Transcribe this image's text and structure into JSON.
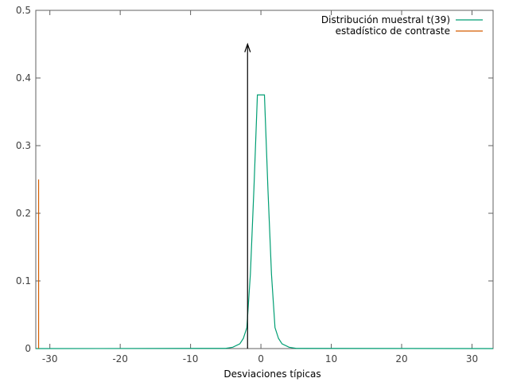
{
  "chart_data": {
    "type": "line",
    "title": "",
    "xlabel": "Desviaciones típicas",
    "ylabel": "",
    "xlim": [
      -32,
      33
    ],
    "ylim": [
      0,
      0.5
    ],
    "x_ticks": [
      -30,
      -20,
      -10,
      0,
      10,
      20,
      30
    ],
    "x_tick_labels": [
      "-30",
      "-20",
      "-10",
      "0",
      "10",
      "20",
      "30"
    ],
    "y_ticks": [
      0,
      0.1,
      0.2,
      0.3,
      0.4,
      0.5
    ],
    "y_tick_labels": [
      "0",
      "0.1",
      "0.2",
      "0.3",
      "0.4",
      "0.5"
    ],
    "grid": false,
    "legend_position": "top-right",
    "series": [
      {
        "name": "Distribución muestral t(39)",
        "color": "#009e73",
        "x": [
          -32,
          -5,
          -4,
          -3,
          -2.5,
          -2,
          -1.5,
          -1,
          -0.5,
          0,
          0.5,
          1,
          1.5,
          2,
          2.5,
          3,
          4,
          5,
          33
        ],
        "y": [
          0,
          0.0003,
          0.002,
          0.007,
          0.015,
          0.031,
          0.11,
          0.235,
          0.375,
          0.375,
          0.375,
          0.235,
          0.11,
          0.031,
          0.015,
          0.007,
          0.002,
          0.0003,
          0
        ]
      },
      {
        "name": "estadístico de contraste",
        "color": "#d55e00",
        "x": [
          -31.6,
          -31.6
        ],
        "y": [
          0,
          0.25
        ]
      }
    ],
    "annotations": [
      {
        "type": "arrow",
        "x": -1.9,
        "y_from": 0,
        "y_to": 0.45,
        "color": "#000000"
      }
    ]
  }
}
